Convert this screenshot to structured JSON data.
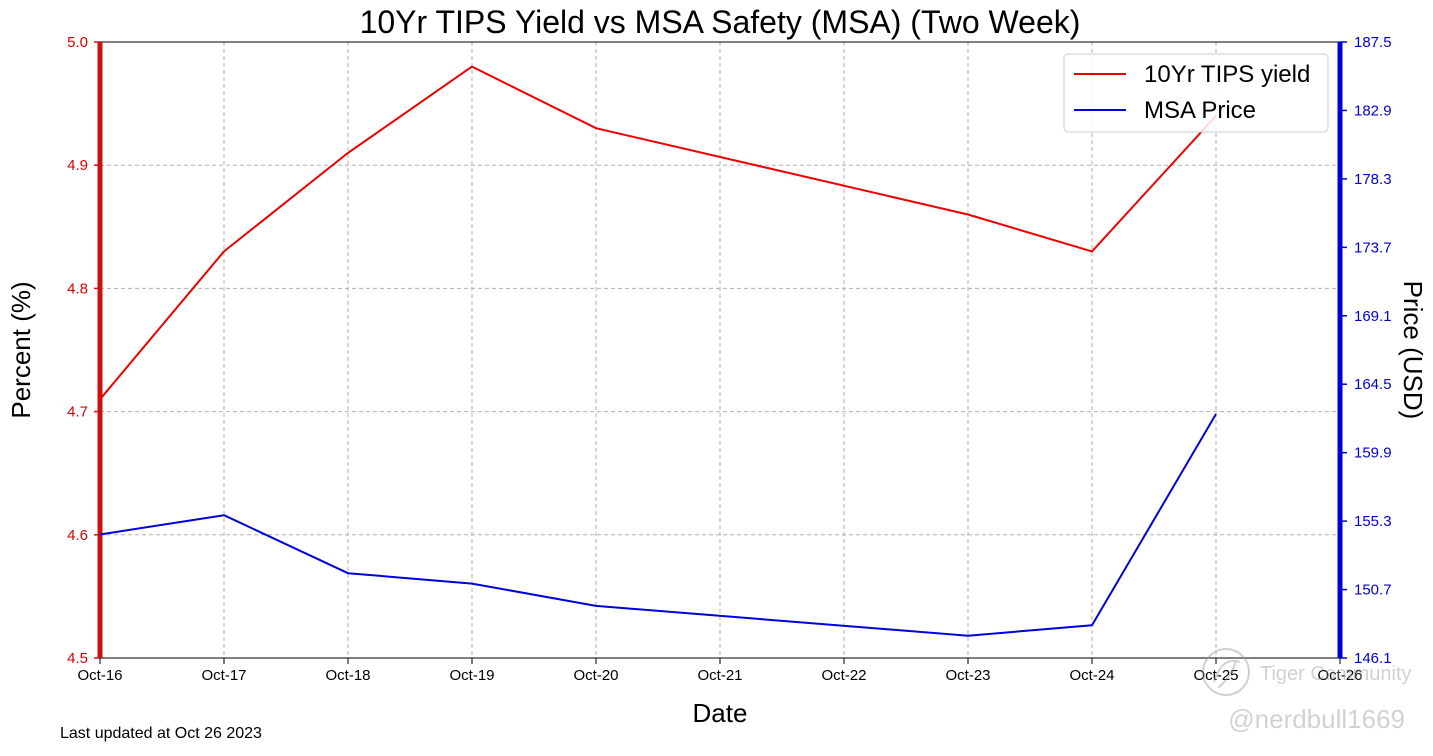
{
  "chart_data": {
    "type": "line",
    "title": "10Yr TIPS Yield vs MSA Safety (MSA) (Two Week)",
    "xlabel": "Date",
    "ylabel_left": "Percent (%)",
    "ylabel_right": "Price (USD)",
    "x_ticks": [
      "Oct-16",
      "Oct-17",
      "Oct-18",
      "Oct-19",
      "Oct-20",
      "Oct-21",
      "Oct-22",
      "Oct-23",
      "Oct-24",
      "Oct-25",
      "Oct-26"
    ],
    "xlim": [
      "Oct-16",
      "Oct-26"
    ],
    "ylim_left": [
      4.5,
      5.0
    ],
    "yticks_left": [
      "4.5",
      "4.6",
      "4.7",
      "4.8",
      "4.9",
      "5.0"
    ],
    "ylim_right": [
      146.1,
      187.5
    ],
    "yticks_right": [
      "146.1",
      "150.7",
      "155.3",
      "159.9",
      "164.5",
      "169.1",
      "173.7",
      "178.3",
      "182.9",
      "187.5"
    ],
    "grid": true,
    "legend_position": "top-right",
    "series": [
      {
        "name": "10Yr TIPS yield",
        "axis": "left",
        "color": "#ee0000",
        "points": [
          {
            "x": "Oct-16",
            "y": 4.71
          },
          {
            "x": "Oct-17",
            "y": 4.83
          },
          {
            "x": "Oct-18",
            "y": 4.91
          },
          {
            "x": "Oct-19",
            "y": 4.98
          },
          {
            "x": "Oct-20",
            "y": 4.93
          },
          {
            "x": "Oct-23",
            "y": 4.86
          },
          {
            "x": "Oct-24",
            "y": 4.83
          },
          {
            "x": "Oct-25",
            "y": 4.94
          }
        ]
      },
      {
        "name": "MSA Price",
        "axis": "right",
        "color": "#0000dd",
        "points": [
          {
            "x": "Oct-16",
            "y": 154.4
          },
          {
            "x": "Oct-17",
            "y": 155.7
          },
          {
            "x": "Oct-18",
            "y": 151.8
          },
          {
            "x": "Oct-19",
            "y": 151.1
          },
          {
            "x": "Oct-20",
            "y": 149.6
          },
          {
            "x": "Oct-23",
            "y": 147.6
          },
          {
            "x": "Oct-24",
            "y": 148.3
          },
          {
            "x": "Oct-25",
            "y": 162.5
          }
        ]
      }
    ],
    "annotation": "Last updated at Oct 26 2023",
    "watermark": "Tiger Community",
    "handle": "@nerdbull1669"
  }
}
